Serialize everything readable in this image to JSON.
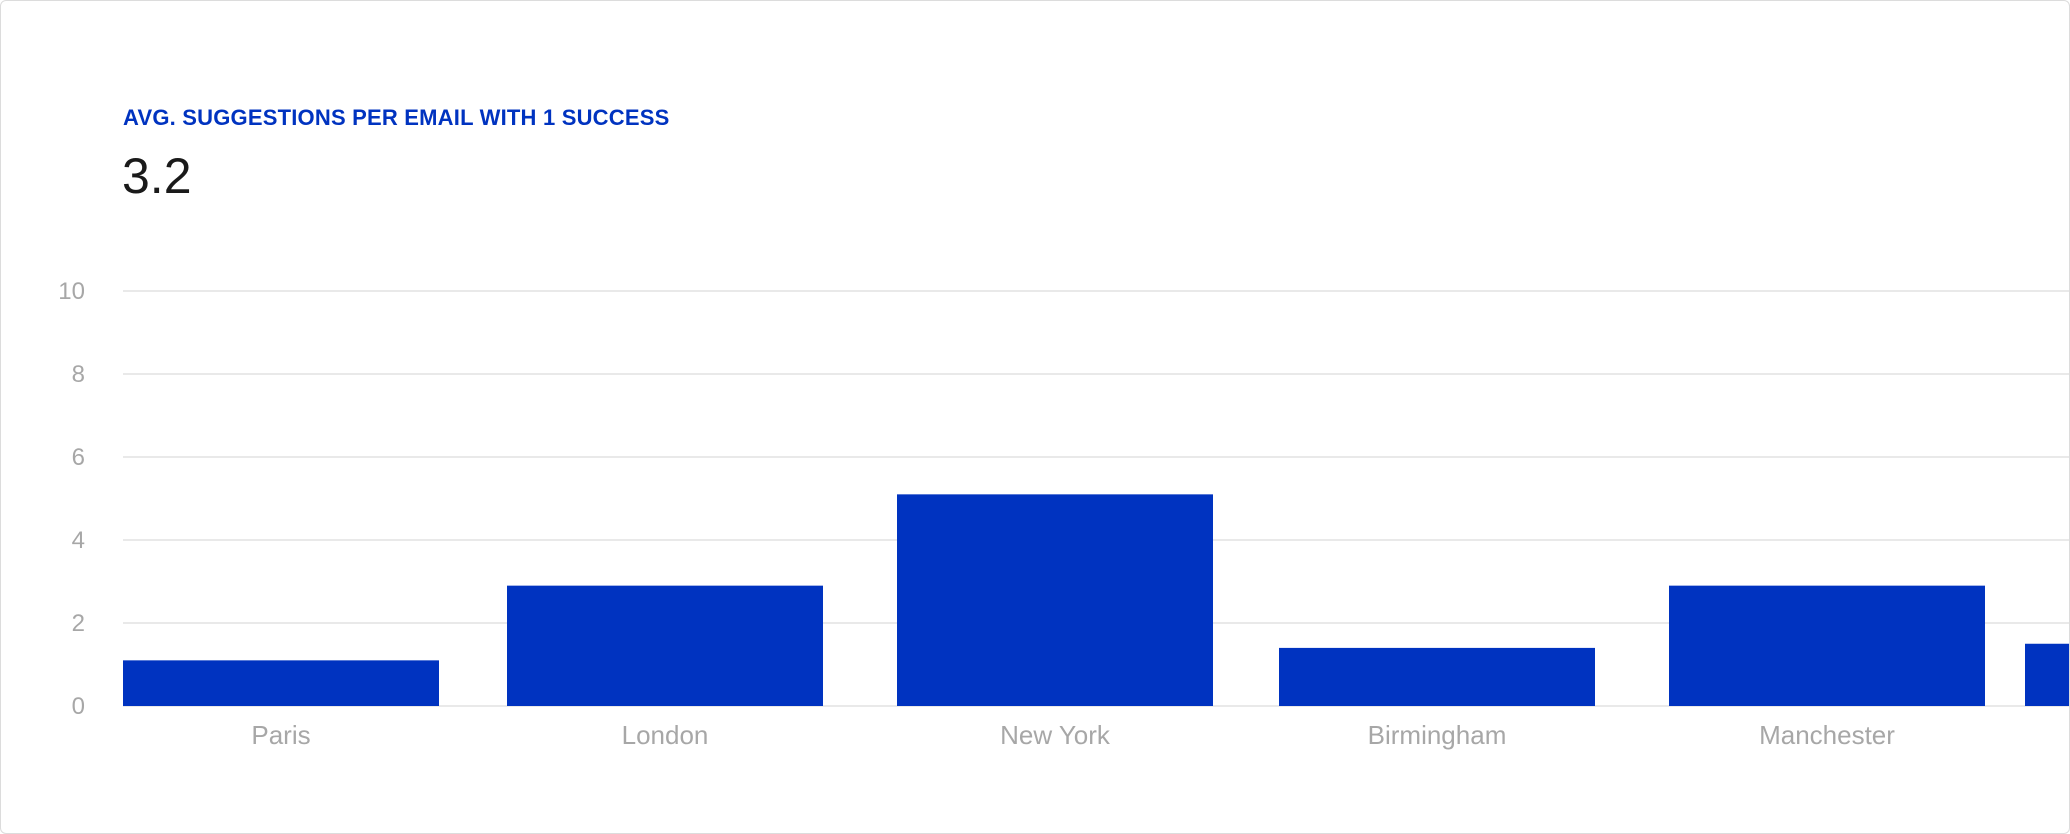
{
  "metric": {
    "title": "AVG. SUGGESTIONS PER EMAIL WITH 1 SUCCESS",
    "value": "3.2"
  },
  "colors": {
    "bar": "#0033c0",
    "title": "#0033c0",
    "grid": "#e2e2e2",
    "tick_text": "#a7a7a7"
  },
  "chart_data": {
    "type": "bar",
    "title": "",
    "xlabel": "",
    "ylabel": "",
    "ylim": [
      0,
      10
    ],
    "yticks": [
      0,
      2,
      4,
      6,
      8,
      10
    ],
    "grid": true,
    "categories": [
      "Paris",
      "London",
      "New York",
      "Birmingham",
      "Manchester",
      ""
    ],
    "values": [
      1.1,
      2.9,
      5.1,
      1.4,
      2.9,
      1.5
    ]
  }
}
